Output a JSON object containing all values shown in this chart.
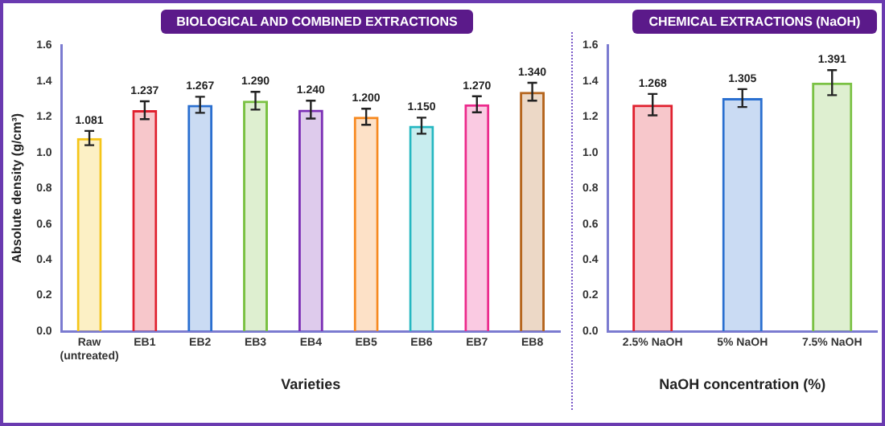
{
  "chart_data": [
    {
      "type": "bar",
      "title": "BIOLOGICAL AND COMBINED EXTRACTIONS",
      "xlabel": "Varieties",
      "ylabel": "Absolute density (g/cm³)",
      "categories": [
        "Raw\n(untreated)",
        "EB1",
        "EB2",
        "EB3",
        "EB4",
        "EB5",
        "EB6",
        "EB7",
        "EB8"
      ],
      "values": [
        1.081,
        1.237,
        1.267,
        1.29,
        1.24,
        1.2,
        1.15,
        1.27,
        1.34
      ],
      "value_labels": [
        "1.081",
        "1.237",
        "1.267",
        "1.290",
        "1.240",
        "1.200",
        "1.150",
        "1.270",
        "1.340"
      ],
      "colors": [
        "#f5c518",
        "#e0202e",
        "#2a6fd0",
        "#7ac143",
        "#7b2fb5",
        "#f7891f",
        "#25b7c1",
        "#ec2a8c",
        "#b5651d"
      ],
      "errors": [
        0.04,
        0.05,
        0.045,
        0.05,
        0.05,
        0.045,
        0.045,
        0.045,
        0.05
      ],
      "ylim": [
        0,
        1.6
      ],
      "yticks": [
        {
          "value": 0,
          "label": "0.0"
        },
        {
          "value": 0.2,
          "label": "0.2"
        },
        {
          "value": 0.4,
          "label": "0.4"
        },
        {
          "value": 0.6,
          "label": "0.6"
        },
        {
          "value": 0.8,
          "label": "0.8"
        },
        {
          "value": 1,
          "label": "1.0"
        },
        {
          "value": 1.2,
          "label": "1.2"
        },
        {
          "value": 1.4,
          "label": "1.4"
        },
        {
          "value": 1.6,
          "label": "1.6"
        }
      ]
    },
    {
      "type": "bar",
      "title": "CHEMICAL EXTRACTIONS (NaOH)",
      "xlabel": "NaOH concentration (%)",
      "categories": [
        "2.5% NaOH",
        "5% NaOH",
        "7.5% NaOH"
      ],
      "values": [
        1.268,
        1.305,
        1.391
      ],
      "data_labels": true,
      "colors": [
        "#e0202e",
        "#2a6fd0",
        "#7ac143"
      ],
      "errors": [
        0.06,
        0.05,
        0.07
      ],
      "ylim": [
        0,
        1.6
      ],
      "yticks": [
        {
          "value": 0,
          "label": "0.0"
        },
        {
          "value": 0.2,
          "label": "0.2"
        },
        {
          "value": 0.4,
          "label": "0.4"
        },
        {
          "value": 0.6,
          "label": "0.6"
        },
        {
          "value": 0.8,
          "label": "0.8"
        },
        {
          "value": 1,
          "label": "1.0"
        },
        {
          "value": 1.2,
          "label": "1.2"
        },
        {
          "value": 1.4,
          "label": "1.4"
        },
        {
          "value": 1.6,
          "label": "1.6"
        }
      ]
    }
  ]
}
